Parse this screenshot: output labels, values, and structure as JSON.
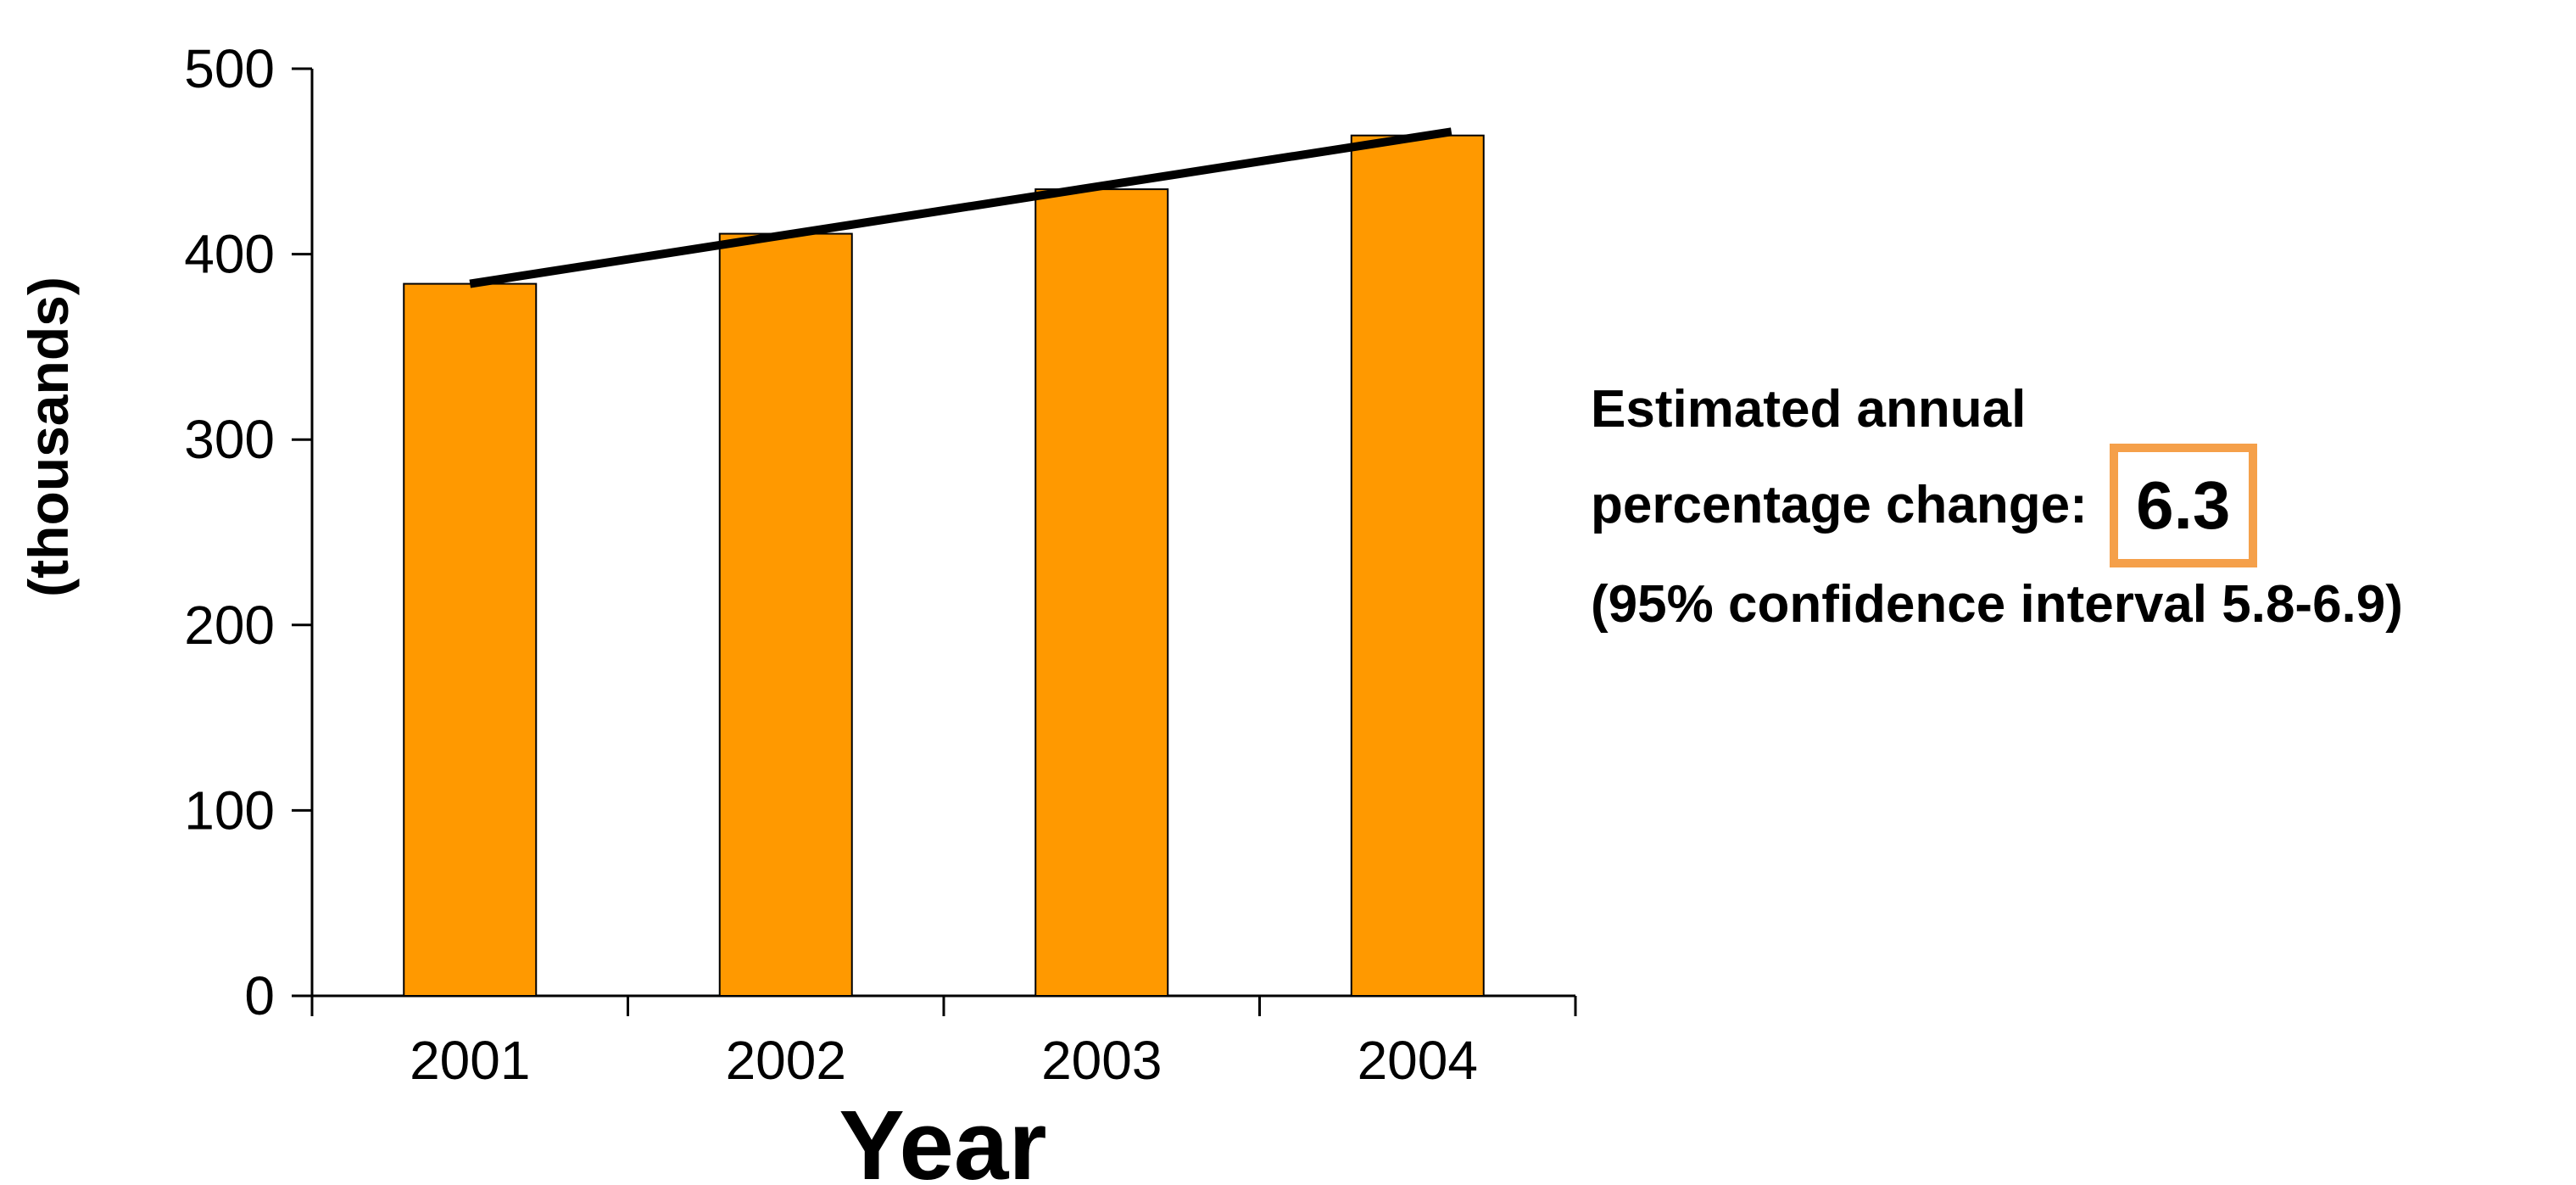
{
  "chart_data": {
    "type": "bar",
    "categories": [
      "2001",
      "2002",
      "2003",
      "2004"
    ],
    "values": [
      384,
      411,
      435,
      464
    ],
    "trend_line": {
      "start": 384,
      "end": 466
    },
    "xlabel": "Year",
    "ylabel": "(thousands)",
    "ylim": [
      0,
      500
    ],
    "yticks": [
      "0",
      "100",
      "200",
      "300",
      "400",
      "500"
    ],
    "grid": false,
    "bar_color": "#ff9900",
    "line_color": "#000000"
  },
  "annotation": {
    "line1": "Estimated annual",
    "line2": "percentage change:",
    "value": "6.3",
    "line3": "(95% confidence interval 5.8-6.9)",
    "box_color": "#f5a04a"
  }
}
